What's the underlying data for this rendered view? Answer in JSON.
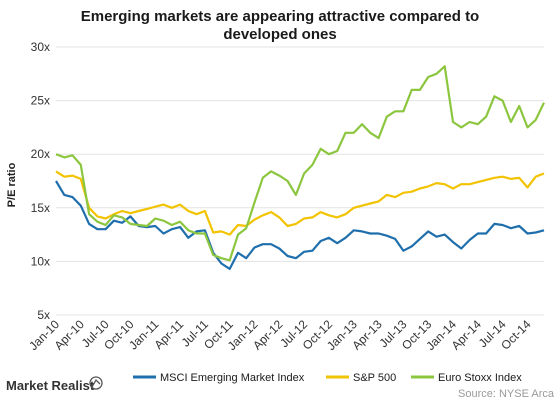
{
  "brand": {
    "name": "Market Realist"
  },
  "source": "Source: NYSE Arca",
  "chart_data": {
    "type": "line",
    "title_lines": [
      "Emerging markets are appearing attractive compared to",
      "developed ones"
    ],
    "ylabel": "P/E ratio",
    "xlabel": "",
    "ylim": [
      5,
      30
    ],
    "y_ticks": [
      "5x",
      "10x",
      "15x",
      "20x",
      "25x",
      "30x"
    ],
    "y_tick_values": [
      5,
      10,
      15,
      20,
      25,
      30
    ],
    "x_ticks": [
      "Jan-10",
      "Apr-10",
      "Jul-10",
      "Oct-10",
      "Jan-11",
      "Apr-11",
      "Jul-11",
      "Oct-11",
      "Jan-12",
      "Apr-12",
      "Jul-12",
      "Oct-12",
      "Jan-13",
      "Apr-13",
      "Jul-13",
      "Oct-13",
      "Jan-14",
      "Apr-14",
      "Jul-14",
      "Oct-14"
    ],
    "x": [
      "Jan-10",
      "Feb-10",
      "Mar-10",
      "Apr-10",
      "May-10",
      "Jun-10",
      "Jul-10",
      "Aug-10",
      "Sep-10",
      "Oct-10",
      "Nov-10",
      "Dec-10",
      "Jan-11",
      "Feb-11",
      "Mar-11",
      "Apr-11",
      "May-11",
      "Jun-11",
      "Jul-11",
      "Aug-11",
      "Sep-11",
      "Oct-11",
      "Nov-11",
      "Dec-11",
      "Jan-12",
      "Feb-12",
      "Mar-12",
      "Apr-12",
      "May-12",
      "Jun-12",
      "Jul-12",
      "Aug-12",
      "Sep-12",
      "Oct-12",
      "Nov-12",
      "Dec-12",
      "Jan-13",
      "Feb-13",
      "Mar-13",
      "Apr-13",
      "May-13",
      "Jun-13",
      "Jul-13",
      "Aug-13",
      "Sep-13",
      "Oct-13",
      "Nov-13",
      "Dec-13",
      "Jan-14",
      "Feb-14",
      "Mar-14",
      "Apr-14",
      "May-14",
      "Jun-14",
      "Jul-14",
      "Aug-14",
      "Sep-14",
      "Oct-14",
      "Nov-14",
      "Dec-14"
    ],
    "grid": "horizontal",
    "legend_position": "bottom",
    "series": [
      {
        "name": "MSCI Emerging Market Index",
        "color": "#1f6fad",
        "values": [
          17.5,
          16.2,
          16.0,
          15.2,
          13.5,
          13.0,
          13.0,
          13.8,
          13.6,
          14.2,
          13.3,
          13.2,
          13.3,
          12.6,
          13.0,
          13.2,
          12.2,
          12.8,
          12.9,
          10.8,
          9.8,
          9.3,
          10.8,
          10.3,
          11.3,
          11.6,
          11.6,
          11.2,
          10.5,
          10.3,
          10.9,
          11.0,
          11.9,
          12.2,
          11.7,
          12.2,
          12.9,
          12.8,
          12.6,
          12.6,
          12.4,
          12.1,
          11.0,
          11.4,
          12.1,
          12.8,
          12.3,
          12.5,
          11.8,
          11.2,
          12.0,
          12.6,
          12.6,
          13.5,
          13.4,
          13.1,
          13.3,
          12.6,
          12.7,
          12.9
        ]
      },
      {
        "name": "S&P 500",
        "color": "#f2c300",
        "values": [
          18.4,
          17.9,
          18.0,
          17.7,
          15.0,
          14.2,
          14.0,
          14.4,
          14.7,
          14.5,
          14.7,
          14.9,
          15.1,
          15.3,
          15.0,
          15.3,
          14.7,
          14.4,
          14.7,
          12.7,
          12.8,
          12.5,
          13.4,
          13.3,
          13.9,
          14.3,
          14.6,
          14.1,
          13.3,
          13.5,
          14.0,
          14.1,
          14.6,
          14.3,
          14.1,
          14.4,
          15.0,
          15.2,
          15.4,
          15.6,
          16.2,
          16.0,
          16.4,
          16.5,
          16.8,
          17.0,
          17.3,
          17.2,
          16.8,
          17.2,
          17.2,
          17.4,
          17.6,
          17.8,
          17.9,
          17.7,
          17.8,
          16.9,
          17.9,
          18.2
        ]
      },
      {
        "name": "Euro Stoxx Index",
        "color": "#8cc63f",
        "values": [
          20.0,
          19.7,
          19.9,
          19.0,
          14.4,
          13.7,
          13.4,
          14.3,
          14.1,
          13.5,
          13.4,
          13.3,
          14.0,
          13.8,
          13.4,
          13.7,
          12.9,
          12.6,
          12.6,
          10.6,
          10.3,
          10.1,
          12.5,
          13.1,
          15.5,
          17.8,
          18.4,
          18.0,
          17.5,
          16.2,
          18.2,
          19.0,
          20.5,
          20.0,
          20.3,
          22.0,
          22.0,
          22.8,
          22.0,
          21.5,
          23.5,
          24.0,
          24.0,
          26.0,
          26.0,
          27.2,
          27.5,
          28.2,
          23.0,
          22.5,
          23.0,
          22.8,
          23.5,
          25.4,
          25.0,
          23.0,
          24.5,
          22.5,
          23.2,
          24.8
        ]
      }
    ]
  }
}
